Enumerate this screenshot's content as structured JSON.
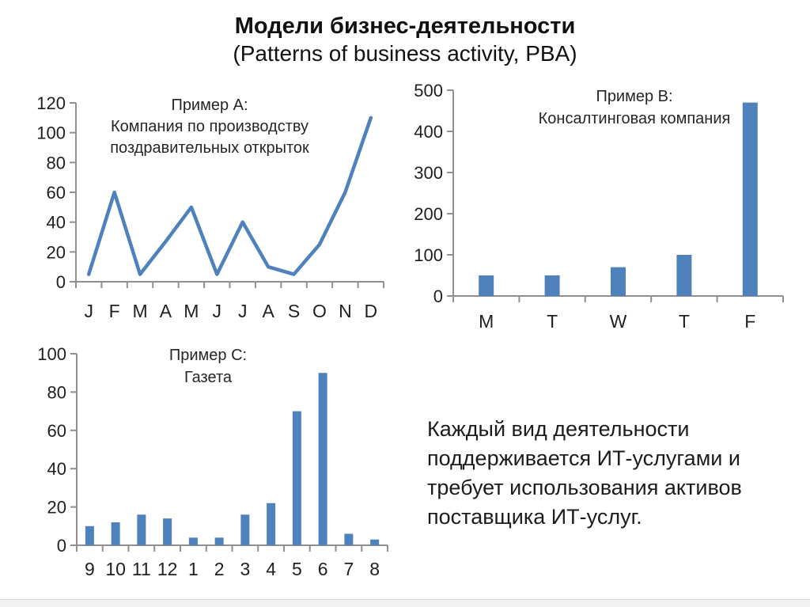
{
  "slide": {
    "title": "Модели бизнес-деятельности",
    "subtitle": "(Patterns of business activity, PBA)"
  },
  "note": {
    "lines": [
      "Каждый вид деятельности",
      "поддерживается ИТ-услугами и",
      "требует использования активов",
      "поставщика ИТ-услуг."
    ]
  },
  "colors": {
    "accent": "#4F81BD",
    "axis": "#8f8f8f",
    "label": "#1f1f1f",
    "chart_title": "#262626"
  },
  "chart_data": [
    {
      "id": "example-a",
      "type": "line",
      "title": "Пример A: Компания по производству поздравительных открыток",
      "title_lines": [
        "Пример A:",
        "Компания по производству",
        "поздравительных открыток"
      ],
      "categories": [
        "J",
        "F",
        "M",
        "A",
        "M",
        "J",
        "J",
        "A",
        "S",
        "O",
        "N",
        "D"
      ],
      "values": [
        5,
        60,
        5,
        27,
        50,
        5,
        40,
        10,
        5,
        25,
        60,
        110
      ],
      "xlabel": "",
      "ylabel": "",
      "ylim": [
        0,
        120
      ],
      "ytick_step": 20,
      "grid": false,
      "legend": "none"
    },
    {
      "id": "example-b",
      "type": "bar",
      "title": "Пример B: Консалтинговая компания",
      "title_lines": [
        "Пример B:",
        "Консалтинговая компания"
      ],
      "categories": [
        "M",
        "T",
        "W",
        "T",
        "F"
      ],
      "values": [
        50,
        50,
        70,
        100,
        470
      ],
      "xlabel": "",
      "ylabel": "",
      "ylim": [
        0,
        500
      ],
      "ytick_step": 100,
      "grid": false,
      "legend": "none"
    },
    {
      "id": "example-c",
      "type": "bar",
      "title": "Пример C: Газета",
      "title_lines": [
        "Пример C:",
        "Газета"
      ],
      "categories": [
        "9",
        "10",
        "11",
        "12",
        "1",
        "2",
        "3",
        "4",
        "5",
        "6",
        "7",
        "8"
      ],
      "values": [
        10,
        12,
        16,
        14,
        4,
        4,
        16,
        22,
        70,
        90,
        6,
        3
      ],
      "xlabel": "",
      "ylabel": "",
      "ylim": [
        0,
        100
      ],
      "ytick_step": 20,
      "grid": false,
      "legend": "none"
    }
  ]
}
